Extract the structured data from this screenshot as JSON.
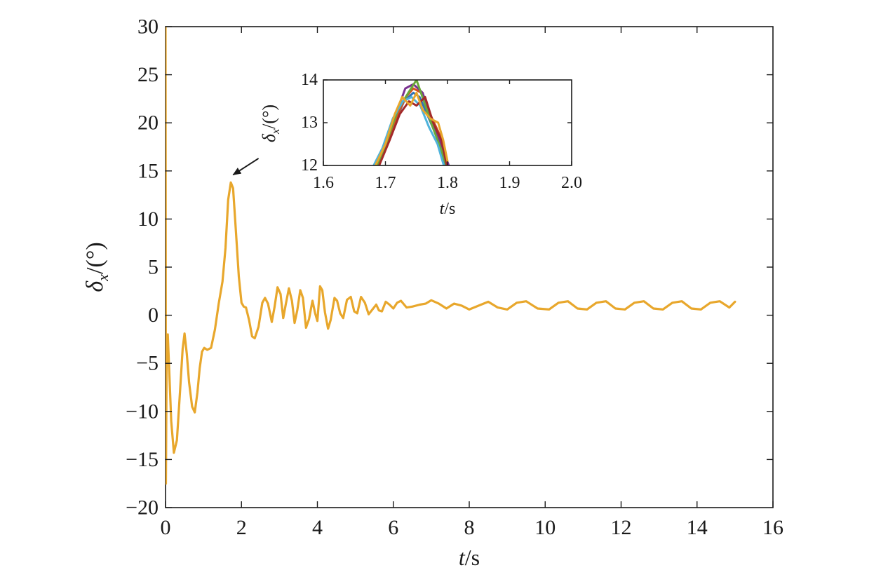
{
  "chart_data": [
    {
      "id": "main",
      "type": "line",
      "title": "",
      "xlabel": {
        "main": "t",
        "unit": "/s"
      },
      "ylabel": {
        "main": "δ",
        "sub": "x",
        "unit": "/(°)"
      },
      "xlim": [
        0,
        16
      ],
      "ylim": [
        -20,
        30
      ],
      "xticks": [
        "0",
        "2",
        "4",
        "6",
        "8",
        "10",
        "12",
        "14",
        "16"
      ],
      "yticks": [
        "−20",
        "−15",
        "−10",
        "−5",
        "0",
        "5",
        "10",
        "15",
        "20",
        "25",
        "30"
      ],
      "grid": false,
      "annotation": {
        "type": "arrow",
        "from": [
          2.45,
          16.3
        ],
        "to": [
          1.78,
          14.6
        ]
      },
      "series": [
        {
          "color": "#e8a72c",
          "points": [
            [
              0,
              30
            ],
            [
              0.01,
              -17.5
            ],
            [
              0.03,
              -4
            ],
            [
              0.06,
              -2
            ],
            [
              0.1,
              -6
            ],
            [
              0.15,
              -11
            ],
            [
              0.22,
              -14.3
            ],
            [
              0.3,
              -13
            ],
            [
              0.38,
              -8
            ],
            [
              0.45,
              -3.5
            ],
            [
              0.5,
              -1.9
            ],
            [
              0.56,
              -4
            ],
            [
              0.62,
              -7
            ],
            [
              0.7,
              -9.5
            ],
            [
              0.77,
              -10.1
            ],
            [
              0.84,
              -8
            ],
            [
              0.9,
              -5.5
            ],
            [
              0.96,
              -3.8
            ],
            [
              1.02,
              -3.4
            ],
            [
              1.1,
              -3.6
            ],
            [
              1.2,
              -3.4
            ],
            [
              1.3,
              -1.5
            ],
            [
              1.4,
              1.2
            ],
            [
              1.5,
              3.5
            ],
            [
              1.58,
              7
            ],
            [
              1.65,
              12
            ],
            [
              1.72,
              13.8
            ],
            [
              1.78,
              13.2
            ],
            [
              1.85,
              9
            ],
            [
              1.93,
              4
            ],
            [
              2.0,
              1.3
            ],
            [
              2.06,
              0.9
            ],
            [
              2.12,
              0.8
            ],
            [
              2.2,
              -0.5
            ],
            [
              2.28,
              -2.2
            ],
            [
              2.35,
              -2.4
            ],
            [
              2.45,
              -1.2
            ],
            [
              2.55,
              1.3
            ],
            [
              2.62,
              1.8
            ],
            [
              2.7,
              1.2
            ],
            [
              2.8,
              -0.7
            ],
            [
              2.87,
              0.8
            ],
            [
              2.95,
              2.9
            ],
            [
              3.03,
              2.2
            ],
            [
              3.1,
              -0.3
            ],
            [
              3.17,
              1.2
            ],
            [
              3.25,
              2.8
            ],
            [
              3.33,
              1.5
            ],
            [
              3.4,
              -0.8
            ],
            [
              3.47,
              0.5
            ],
            [
              3.55,
              2.6
            ],
            [
              3.62,
              1.8
            ],
            [
              3.7,
              -1.3
            ],
            [
              3.78,
              -0.4
            ],
            [
              3.87,
              1.5
            ],
            [
              3.94,
              0.2
            ],
            [
              4.0,
              -0.6
            ],
            [
              4.07,
              3.0
            ],
            [
              4.13,
              2.6
            ],
            [
              4.2,
              0.3
            ],
            [
              4.28,
              -1.4
            ],
            [
              4.35,
              -0.5
            ],
            [
              4.45,
              1.8
            ],
            [
              4.52,
              1.5
            ],
            [
              4.6,
              0.2
            ],
            [
              4.68,
              -0.3
            ],
            [
              4.78,
              1.6
            ],
            [
              4.88,
              1.9
            ],
            [
              4.97,
              0.4
            ],
            [
              5.05,
              0.2
            ],
            [
              5.15,
              1.9
            ],
            [
              5.25,
              1.3
            ],
            [
              5.35,
              0.1
            ],
            [
              5.45,
              0.6
            ],
            [
              5.55,
              1.1
            ],
            [
              5.62,
              0.5
            ],
            [
              5.7,
              0.4
            ],
            [
              5.8,
              1.4
            ],
            [
              5.9,
              1.1
            ],
            [
              6.0,
              0.7
            ],
            [
              6.1,
              1.3
            ],
            [
              6.2,
              1.5
            ],
            [
              6.35,
              0.8
            ],
            [
              6.5,
              0.9
            ],
            [
              6.7,
              1.1
            ],
            [
              6.85,
              1.2
            ],
            [
              7.0,
              1.55
            ],
            [
              7.2,
              1.2
            ],
            [
              7.4,
              0.7
            ],
            [
              7.6,
              1.2
            ],
            [
              7.8,
              1.0
            ],
            [
              8.0,
              0.6
            ],
            [
              8.25,
              1.0
            ],
            [
              8.5,
              1.4
            ],
            [
              8.75,
              0.8
            ],
            [
              9.0,
              0.6
            ],
            [
              9.25,
              1.3
            ],
            [
              9.5,
              1.45
            ],
            [
              9.8,
              0.7
            ],
            [
              10.1,
              0.6
            ],
            [
              10.35,
              1.3
            ],
            [
              10.6,
              1.45
            ],
            [
              10.85,
              0.7
            ],
            [
              11.1,
              0.6
            ],
            [
              11.35,
              1.3
            ],
            [
              11.6,
              1.45
            ],
            [
              11.85,
              0.7
            ],
            [
              12.1,
              0.6
            ],
            [
              12.35,
              1.3
            ],
            [
              12.6,
              1.45
            ],
            [
              12.85,
              0.7
            ],
            [
              13.1,
              0.6
            ],
            [
              13.35,
              1.3
            ],
            [
              13.6,
              1.45
            ],
            [
              13.85,
              0.7
            ],
            [
              14.1,
              0.6
            ],
            [
              14.35,
              1.3
            ],
            [
              14.6,
              1.45
            ],
            [
              14.85,
              0.8
            ],
            [
              15.0,
              1.4
            ]
          ]
        }
      ]
    },
    {
      "id": "inset",
      "type": "line",
      "title": "",
      "xlabel": {
        "main": "t",
        "unit": "/s"
      },
      "ylabel": {
        "main": "δ",
        "sub": "x",
        "unit": "/(°)"
      },
      "xlim": [
        1.6,
        2.0
      ],
      "ylim": [
        12,
        14
      ],
      "xticks": [
        "1.6",
        "1.7",
        "1.8",
        "1.9",
        "2.0"
      ],
      "yticks": [
        "12",
        "13",
        "14"
      ],
      "grid": false,
      "series": [
        {
          "color": "#2f72b8",
          "points": [
            [
              1.683,
              12
            ],
            [
              1.7,
              12.5
            ],
            [
              1.715,
              13.0
            ],
            [
              1.73,
              13.5
            ],
            [
              1.745,
              13.7
            ],
            [
              1.755,
              13.6
            ],
            [
              1.77,
              13.1
            ],
            [
              1.785,
              12.6
            ],
            [
              1.797,
              12
            ]
          ]
        },
        {
          "color": "#d4531f",
          "points": [
            [
              1.688,
              12
            ],
            [
              1.705,
              12.6
            ],
            [
              1.72,
              13.2
            ],
            [
              1.733,
              13.6
            ],
            [
              1.745,
              13.8
            ],
            [
              1.758,
              13.7
            ],
            [
              1.772,
              13.2
            ],
            [
              1.788,
              12.7
            ],
            [
              1.8,
              12
            ]
          ]
        },
        {
          "color": "#7a3190",
          "points": [
            [
              1.686,
              12
            ],
            [
              1.7,
              12.5
            ],
            [
              1.717,
              13.2
            ],
            [
              1.732,
              13.8
            ],
            [
              1.745,
              13.9
            ],
            [
              1.76,
              13.7
            ],
            [
              1.775,
              13.0
            ],
            [
              1.79,
              12.5
            ],
            [
              1.802,
              12
            ]
          ]
        },
        {
          "color": "#6aa83a",
          "points": [
            [
              1.687,
              12
            ],
            [
              1.703,
              12.6
            ],
            [
              1.72,
              13.3
            ],
            [
              1.737,
              13.7
            ],
            [
              1.75,
              14.0
            ],
            [
              1.762,
              13.5
            ],
            [
              1.776,
              12.9
            ],
            [
              1.789,
              12.4
            ],
            [
              1.798,
              12
            ]
          ]
        },
        {
          "color": "#4fb3dc",
          "points": [
            [
              1.681,
              12
            ],
            [
              1.695,
              12.4
            ],
            [
              1.712,
              13.1
            ],
            [
              1.728,
              13.5
            ],
            [
              1.742,
              13.6
            ],
            [
              1.756,
              13.4
            ],
            [
              1.77,
              12.9
            ],
            [
              1.784,
              12.5
            ],
            [
              1.794,
              12
            ]
          ]
        },
        {
          "color": "#a32a2a",
          "points": [
            [
              1.69,
              12
            ],
            [
              1.707,
              12.6
            ],
            [
              1.723,
              13.2
            ],
            [
              1.738,
              13.5
            ],
            [
              1.75,
              13.4
            ],
            [
              1.764,
              13.6
            ],
            [
              1.777,
              13.0
            ],
            [
              1.79,
              12.6
            ],
            [
              1.799,
              12
            ]
          ]
        },
        {
          "color": "#e8a72c",
          "points": [
            [
              1.684,
              12
            ],
            [
              1.7,
              12.5
            ],
            [
              1.715,
              13.2
            ],
            [
              1.727,
              13.6
            ],
            [
              1.74,
              13.4
            ],
            [
              1.75,
              13.7
            ],
            [
              1.76,
              13.3
            ],
            [
              1.772,
              13.1
            ],
            [
              1.785,
              13.0
            ],
            [
              1.793,
              12.6
            ],
            [
              1.8,
              12.1
            ]
          ]
        }
      ]
    }
  ]
}
